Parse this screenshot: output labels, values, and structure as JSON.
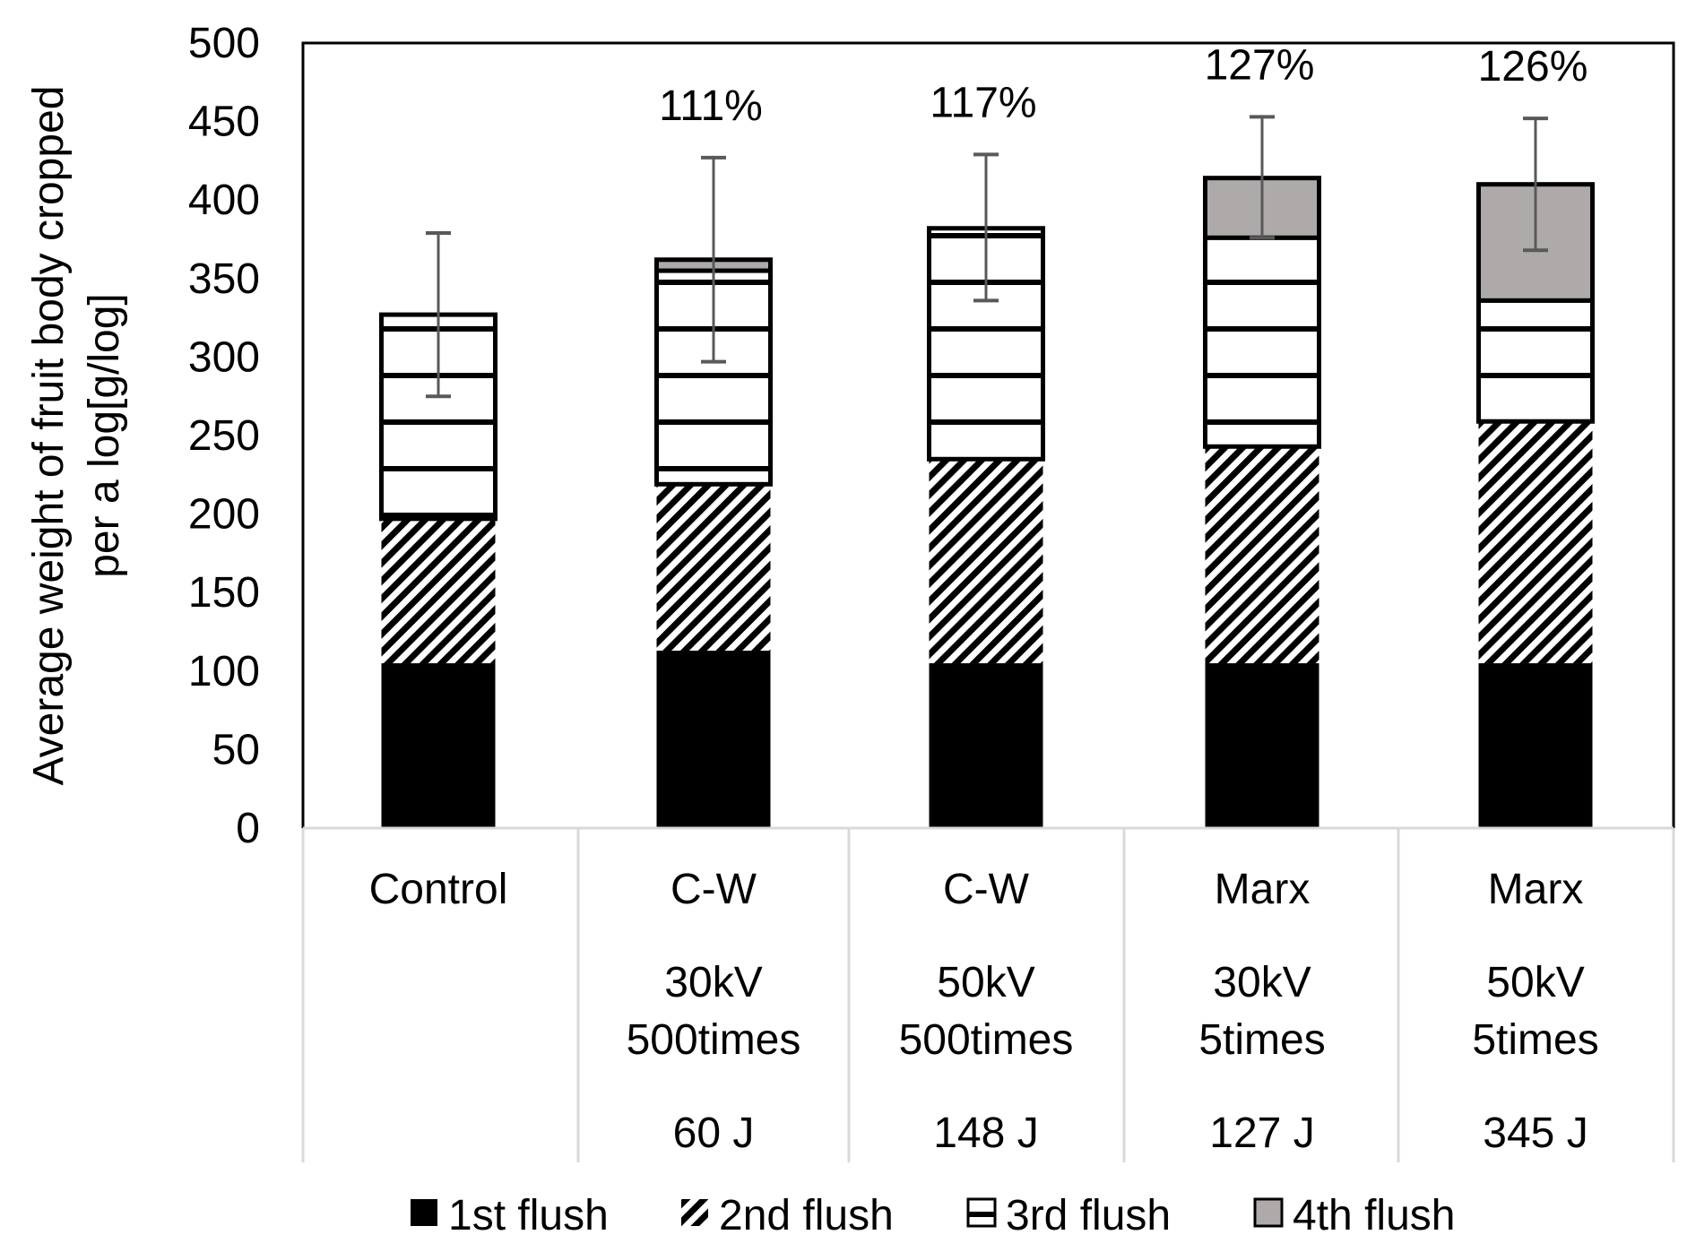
{
  "chart_data": {
    "type": "bar",
    "stacked": true,
    "title": "",
    "ylabel": "Average weight of fruit body cropped per a log[g/log]",
    "ylabel_lines": [
      "Average weight of fruit body cropped",
      "per a log[g/log]"
    ],
    "ylim": [
      0,
      500
    ],
    "yticks": [
      0,
      50,
      100,
      150,
      200,
      250,
      300,
      350,
      400,
      450,
      500
    ],
    "categories": [
      {
        "lines": [
          "Control"
        ],
        "energy": ""
      },
      {
        "lines": [
          "C-W",
          "30kV",
          "500times"
        ],
        "energy": "60 J"
      },
      {
        "lines": [
          "C-W",
          "50kV",
          "500times"
        ],
        "energy": "148 J"
      },
      {
        "lines": [
          "Marx",
          "30kV",
          "5times"
        ],
        "energy": "127 J"
      },
      {
        "lines": [
          "Marx",
          "50kV",
          "5times"
        ],
        "energy": "345 J"
      }
    ],
    "series": [
      {
        "name": "1st flush",
        "values": [
          105,
          113,
          105,
          105,
          105
        ],
        "color": "#000000",
        "pattern": "solid"
      },
      {
        "name": "2nd flush",
        "values": [
          92,
          106,
          130,
          138,
          154
        ],
        "color": "#000000",
        "pattern": "diagonal"
      },
      {
        "name": "3rd flush",
        "values": [
          130,
          136,
          147,
          133,
          77
        ],
        "color": "#000000",
        "pattern": "horizontal"
      },
      {
        "name": "4th flush",
        "values": [
          0,
          7,
          0,
          38,
          74
        ],
        "color": "#aeaaaa",
        "pattern": "solid"
      }
    ],
    "error_bars": [
      [
        275,
        379
      ],
      [
        297,
        427
      ],
      [
        336,
        429
      ],
      [
        376,
        453
      ],
      [
        368,
        452
      ]
    ],
    "annotations": [
      "",
      "111%",
      "117%",
      "127%",
      "126%"
    ],
    "legend_position": "bottom",
    "grid": false
  }
}
